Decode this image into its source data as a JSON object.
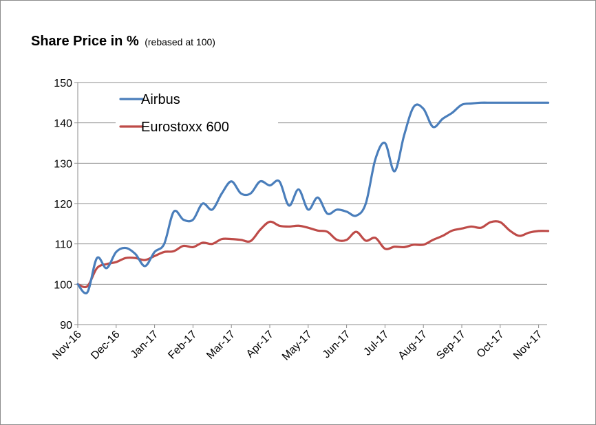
{
  "chart_data": {
    "type": "line",
    "title": "Share Price in %",
    "subtitle": "(rebased at 100)",
    "xlabel": "",
    "ylabel": "",
    "ylim": [
      90,
      150
    ],
    "yticks": [
      90,
      100,
      110,
      120,
      130,
      140,
      150
    ],
    "grid": true,
    "legend_position": "top-left",
    "categories": [
      "Nov-16",
      "Dec-16",
      "Jan-17",
      "Feb-17",
      "Mar-17",
      "Apr-17",
      "May-17",
      "Jun-17",
      "Jul-17",
      "Aug-17",
      "Sep-17",
      "Oct-17",
      "Nov-17"
    ],
    "x": [
      0,
      0.25,
      0.5,
      0.75,
      1,
      1.25,
      1.5,
      1.75,
      2,
      2.25,
      2.5,
      2.75,
      3,
      3.25,
      3.5,
      3.75,
      4,
      4.25,
      4.5,
      4.75,
      5,
      5.25,
      5.5,
      5.75,
      6,
      6.25,
      6.5,
      6.75,
      7,
      7.25,
      7.5,
      7.75,
      8,
      8.25,
      8.5,
      8.75,
      9,
      9.25,
      9.5,
      9.75,
      10,
      10.25,
      10.5,
      10.75,
      11,
      11.25,
      11.5,
      11.75,
      12,
      12.25
    ],
    "series": [
      {
        "name": "Airbus",
        "color": "#4a7ebb",
        "values": [
          100,
          98,
          106.5,
          104,
          108,
          109,
          107.5,
          104.5,
          108,
          110,
          118,
          116,
          116,
          120,
          118.5,
          122.5,
          125.5,
          122.5,
          122.5,
          125.5,
          124.5,
          125.5,
          119.5,
          123.5,
          118.5,
          121.5,
          117.5,
          118.5,
          118,
          117,
          120,
          131,
          135,
          128,
          137,
          144,
          143.5,
          139,
          141,
          142.5,
          144.5,
          144.8,
          145,
          145,
          145,
          145,
          145,
          145,
          145,
          145
        ]
      },
      {
        "name": "Eurostoxx 600",
        "color": "#be4b48",
        "values": [
          100,
          99.5,
          104,
          105,
          105.5,
          106.5,
          106.5,
          106,
          107,
          108,
          108.2,
          109.5,
          109.2,
          110.3,
          110,
          111.2,
          111.2,
          111,
          110.7,
          113.5,
          115.5,
          114.5,
          114.3,
          114.5,
          114,
          113.3,
          113,
          111,
          111,
          113,
          110.8,
          111.5,
          108.8,
          109.3,
          109.2,
          109.8,
          109.8,
          111,
          112,
          113.3,
          113.8,
          114.3,
          114,
          115.4,
          115.4,
          113.3,
          112,
          112.8,
          113.2,
          113.2
        ]
      }
    ]
  }
}
